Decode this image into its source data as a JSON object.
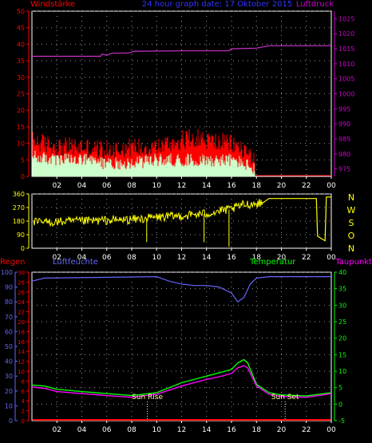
{
  "header": {
    "title": "24 hour graph date: 17 Oktober 2015",
    "left_label": "Windstärke",
    "right_label": "Luftdruck"
  },
  "colors": {
    "background": "#000000",
    "frame": "#ffffff",
    "grid": "#9a9a9a",
    "wind_axis": "#ff0000",
    "pressure_axis": "#cc00cc",
    "title": "#3333ff",
    "gust": "#ff0000",
    "wind": "#ccffcc",
    "pressure": "#cc33cc",
    "direction": "#ffff00",
    "direction_axis": "#ffff00",
    "rain": "#ff0000",
    "humidity": "#6666ff",
    "temperature": "#00ff00",
    "dewpoint": "#ff00ff",
    "sun": "#ffff99"
  },
  "chart_data": [
    {
      "type": "bar",
      "name": "wind-chart",
      "x_ticks": [
        "02",
        "04",
        "06",
        "08",
        "10",
        "12",
        "14",
        "16",
        "18",
        "20",
        "22",
        "00"
      ],
      "y_left": {
        "label": "Windstärke",
        "ticks": [
          0,
          5,
          10,
          15,
          20,
          25,
          30,
          35,
          40,
          45,
          50
        ],
        "range": [
          0,
          50
        ]
      },
      "y_right": {
        "label": "Luftdruck",
        "ticks": [
          975,
          980,
          985,
          990,
          995,
          1000,
          1005,
          1010,
          1015,
          1020,
          1025
        ],
        "range": [
          972.5,
          1027.5
        ]
      },
      "x_range_hours": [
        0,
        24
      ],
      "grid": true,
      "gust_profile": {
        "x": [
          0,
          2,
          4,
          6,
          8,
          10,
          12,
          13,
          14,
          16,
          17,
          17.9
        ],
        "y": [
          10,
          8,
          8,
          7,
          8,
          8,
          10,
          11,
          10,
          9,
          7,
          5
        ]
      },
      "wind_profile": {
        "x": [
          0,
          2,
          4,
          6,
          8,
          10,
          12,
          14,
          16,
          17,
          17.9
        ],
        "y": [
          6,
          5,
          5,
          4,
          4,
          5,
          5,
          5,
          5,
          4,
          2
        ]
      },
      "pressure": {
        "x": [
          0,
          5.5,
          5.6,
          6,
          6.4,
          7.8,
          8.2,
          9,
          12,
          15.8,
          16,
          16.4,
          18,
          19,
          24
        ],
        "y": [
          1012.5,
          1012.5,
          1013.2,
          1012.8,
          1013.5,
          1013.6,
          1014.2,
          1014.2,
          1014.3,
          1014.3,
          1015,
          1015,
          1015.2,
          1016,
          1016
        ]
      }
    },
    {
      "type": "line",
      "name": "direction-chart",
      "x_ticks": [
        "02",
        "04",
        "06",
        "08",
        "10",
        "12",
        "14",
        "16",
        "18",
        "20",
        "22",
        "00"
      ],
      "y_left": {
        "ticks": [
          0,
          90,
          180,
          270,
          360
        ],
        "range": [
          0,
          360
        ]
      },
      "y_right": {
        "ticks": [
          "N",
          "W",
          "S",
          "O",
          "N"
        ]
      },
      "x_range_hours": [
        0,
        24
      ],
      "grid": true,
      "direction": {
        "x": [
          0,
          4,
          8,
          10,
          12,
          14,
          16,
          17,
          18.5,
          19,
          22.8,
          22.9,
          23.5,
          23.6,
          24
        ],
        "y": [
          170,
          180,
          190,
          205,
          215,
          230,
          260,
          290,
          300,
          330,
          330,
          80,
          50,
          340,
          340
        ]
      }
    },
    {
      "type": "line",
      "name": "temp-humidity-chart",
      "x_ticks": [
        "02",
        "04",
        "06",
        "08",
        "10",
        "12",
        "14",
        "16",
        "18",
        "20",
        "22",
        "00"
      ],
      "y_left": {
        "label": "Luftfeuchte",
        "ticks": [
          0,
          10,
          20,
          30,
          40,
          50,
          60,
          70,
          80,
          90,
          100
        ],
        "range": [
          0,
          100
        ]
      },
      "y_left2": {
        "label": "Regen",
        "ticks": [
          0,
          2,
          4,
          6,
          8,
          10,
          12,
          14,
          16,
          18,
          20,
          22,
          24,
          26,
          28,
          30
        ],
        "range": [
          0,
          30
        ]
      },
      "y_right": {
        "label": "Temperatur",
        "ticks": [
          -5,
          0,
          5,
          10,
          15,
          20,
          25,
          30,
          35,
          40
        ],
        "range": [
          -5,
          40
        ]
      },
      "top_right_label": "Taupunkt",
      "x_range_hours": [
        0,
        24
      ],
      "grid": true,
      "humidity": {
        "x": [
          0,
          1,
          10,
          11,
          12,
          13,
          14,
          15,
          16,
          16.5,
          17,
          17.5,
          18,
          19,
          24
        ],
        "y": [
          94,
          96,
          97,
          94,
          92,
          91,
          91,
          90,
          86,
          80,
          83,
          92,
          96,
          97,
          97
        ]
      },
      "temperature": {
        "x": [
          0,
          1,
          2,
          4,
          6,
          8,
          10,
          12,
          14,
          15,
          16,
          16.5,
          17,
          17.3,
          18,
          19,
          20,
          22,
          23,
          24
        ],
        "y": [
          5.8,
          5.5,
          4.5,
          3.8,
          3.2,
          2.6,
          3.5,
          6.5,
          8.5,
          9.5,
          10.5,
          12.5,
          13.5,
          12.5,
          6,
          3.5,
          2.8,
          2.5,
          3,
          3.5
        ]
      },
      "dewpoint": {
        "x": [
          0,
          1,
          2,
          4,
          6,
          8,
          10,
          12,
          14,
          15,
          16,
          16.5,
          17,
          17.3,
          18,
          19,
          20,
          22,
          23,
          24
        ],
        "y": [
          5.2,
          4.8,
          3.8,
          3.2,
          2.6,
          2.1,
          3,
          5.5,
          7.5,
          8.3,
          9.3,
          11,
          11.7,
          11,
          5.5,
          3,
          2.3,
          2.1,
          2.6,
          3.2
        ]
      },
      "rain": {
        "x": [
          0,
          24
        ],
        "y": [
          0,
          0
        ]
      },
      "sun_rise": {
        "label": "Sun Rise",
        "hour": 9.25
      },
      "sun_set": {
        "label": "Sun Set",
        "hour": 20.3
      }
    }
  ]
}
